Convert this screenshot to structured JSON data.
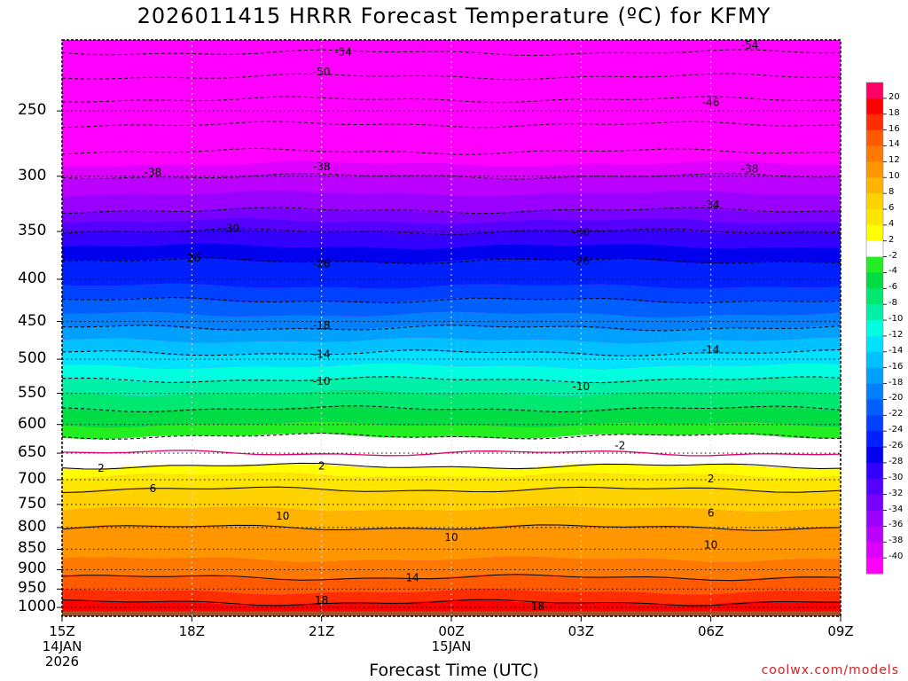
{
  "chart_data": {
    "type": "heatmap",
    "title": "2026011415 HRRR Forecast Temperature (ºC) for KFMY",
    "xlabel": "Forecast Time (UTC)",
    "ylabel": "",
    "x_ticks": [
      {
        "label": "15Z",
        "sub": [
          "14JAN",
          "2026"
        ]
      },
      {
        "label": "18Z",
        "sub": []
      },
      {
        "label": "21Z",
        "sub": []
      },
      {
        "label": "00Z",
        "sub": [
          "15JAN"
        ]
      },
      {
        "label": "03Z",
        "sub": []
      },
      {
        "label": "06Z",
        "sub": []
      },
      {
        "label": "09Z",
        "sub": []
      }
    ],
    "y_ticks": [
      250,
      300,
      350,
      400,
      450,
      500,
      550,
      600,
      650,
      700,
      750,
      800,
      850,
      900,
      950,
      1000
    ],
    "y_scale": "log-pressure",
    "ylim_hPa": [
      1025,
      205
    ],
    "x_hours": [
      0,
      18
    ],
    "profile": {
      "pressures_hPa": [
        205,
        220,
        250,
        280,
        300,
        330,
        350,
        380,
        400,
        450,
        500,
        550,
        600,
        625,
        650,
        680,
        700,
        750,
        800,
        850,
        900,
        950,
        980,
        1000,
        1020
      ],
      "temperatures_C": [
        -60,
        -56,
        -48,
        -42,
        -38,
        -34,
        -30,
        -26,
        -25,
        -19,
        -13,
        -8,
        -4,
        -1.5,
        0,
        2.5,
        5,
        7.5,
        10,
        11,
        13,
        15.5,
        17.5,
        19,
        20
      ]
    },
    "contour_labels": [
      {
        "text": "-54",
        "x": 6.5,
        "p": 212
      },
      {
        "text": "-54",
        "x": 15.9,
        "p": 208
      },
      {
        "text": "-50",
        "x": 6.0,
        "p": 224
      },
      {
        "text": "-46",
        "x": 15.0,
        "p": 244
      },
      {
        "text": "-38",
        "x": 2.1,
        "p": 297
      },
      {
        "text": "-38",
        "x": 6.0,
        "p": 292
      },
      {
        "text": "-38",
        "x": 15.9,
        "p": 294
      },
      {
        "text": "-34",
        "x": 15.0,
        "p": 325
      },
      {
        "text": "-30",
        "x": 3.9,
        "p": 347
      },
      {
        "text": "-30",
        "x": 12.0,
        "p": 351
      },
      {
        "text": "-26",
        "x": 3.0,
        "p": 377
      },
      {
        "text": "-26",
        "x": 6.0,
        "p": 383
      },
      {
        "text": "-26",
        "x": 12.0,
        "p": 380
      },
      {
        "text": "-18",
        "x": 6.0,
        "p": 455
      },
      {
        "text": "-14",
        "x": 6.0,
        "p": 493
      },
      {
        "text": "-14",
        "x": 15.0,
        "p": 487
      },
      {
        "text": "-10",
        "x": 6.0,
        "p": 532
      },
      {
        "text": "-10",
        "x": 12.0,
        "p": 540
      },
      {
        "text": "-2",
        "x": 12.9,
        "p": 636
      },
      {
        "text": "2",
        "x": 0.9,
        "p": 678
      },
      {
        "text": "2",
        "x": 6.0,
        "p": 674
      },
      {
        "text": "2",
        "x": 15.0,
        "p": 698
      },
      {
        "text": "6",
        "x": 2.1,
        "p": 718
      },
      {
        "text": "6",
        "x": 15.0,
        "p": 768
      },
      {
        "text": "10",
        "x": 5.1,
        "p": 775
      },
      {
        "text": "10",
        "x": 9.0,
        "p": 822
      },
      {
        "text": "10",
        "x": 15.0,
        "p": 840
      },
      {
        "text": "14",
        "x": 8.1,
        "p": 920
      },
      {
        "text": "18",
        "x": 6.0,
        "p": 980
      },
      {
        "text": "18",
        "x": 11.0,
        "p": 997
      }
    ],
    "colorbar": {
      "labels": [
        "20",
        "18",
        "16",
        "14",
        "12",
        "10",
        "8",
        "6",
        "4",
        "2",
        "-2",
        "-4",
        "-6",
        "-8",
        "-10",
        "-12",
        "-14",
        "-16",
        "-18",
        "-20",
        "-22",
        "-24",
        "-26",
        "-28",
        "-30",
        "-32",
        "-34",
        "-36",
        "-38",
        "-40"
      ],
      "levels": [
        20,
        18,
        16,
        14,
        12,
        10,
        8,
        6,
        4,
        2,
        -2,
        -4,
        -6,
        -8,
        -10,
        -12,
        -14,
        -16,
        -18,
        -20,
        -22,
        -24,
        -26,
        -28,
        -30,
        -32,
        -34,
        -36,
        -38,
        -40
      ],
      "colors": [
        "#ff0066",
        "#ff0000",
        "#ff2d00",
        "#ff5a00",
        "#ff7800",
        "#ff9600",
        "#ffb400",
        "#ffd200",
        "#ffe600",
        "#ffff00",
        "#ffffff",
        "#22ee22",
        "#00dd44",
        "#00e870",
        "#00f0a8",
        "#00ffe0",
        "#00e0ff",
        "#00c0ff",
        "#00a0ff",
        "#0080ff",
        "#0060ff",
        "#0040ff",
        "#0020ff",
        "#0000ee",
        "#3300ff",
        "#5500ff",
        "#7700ff",
        "#9900ff",
        "#bb00ff",
        "#dd00ff",
        "#ff00ff"
      ]
    },
    "ground_color": "#a0522d"
  },
  "watermark": "coolwx.com/models"
}
